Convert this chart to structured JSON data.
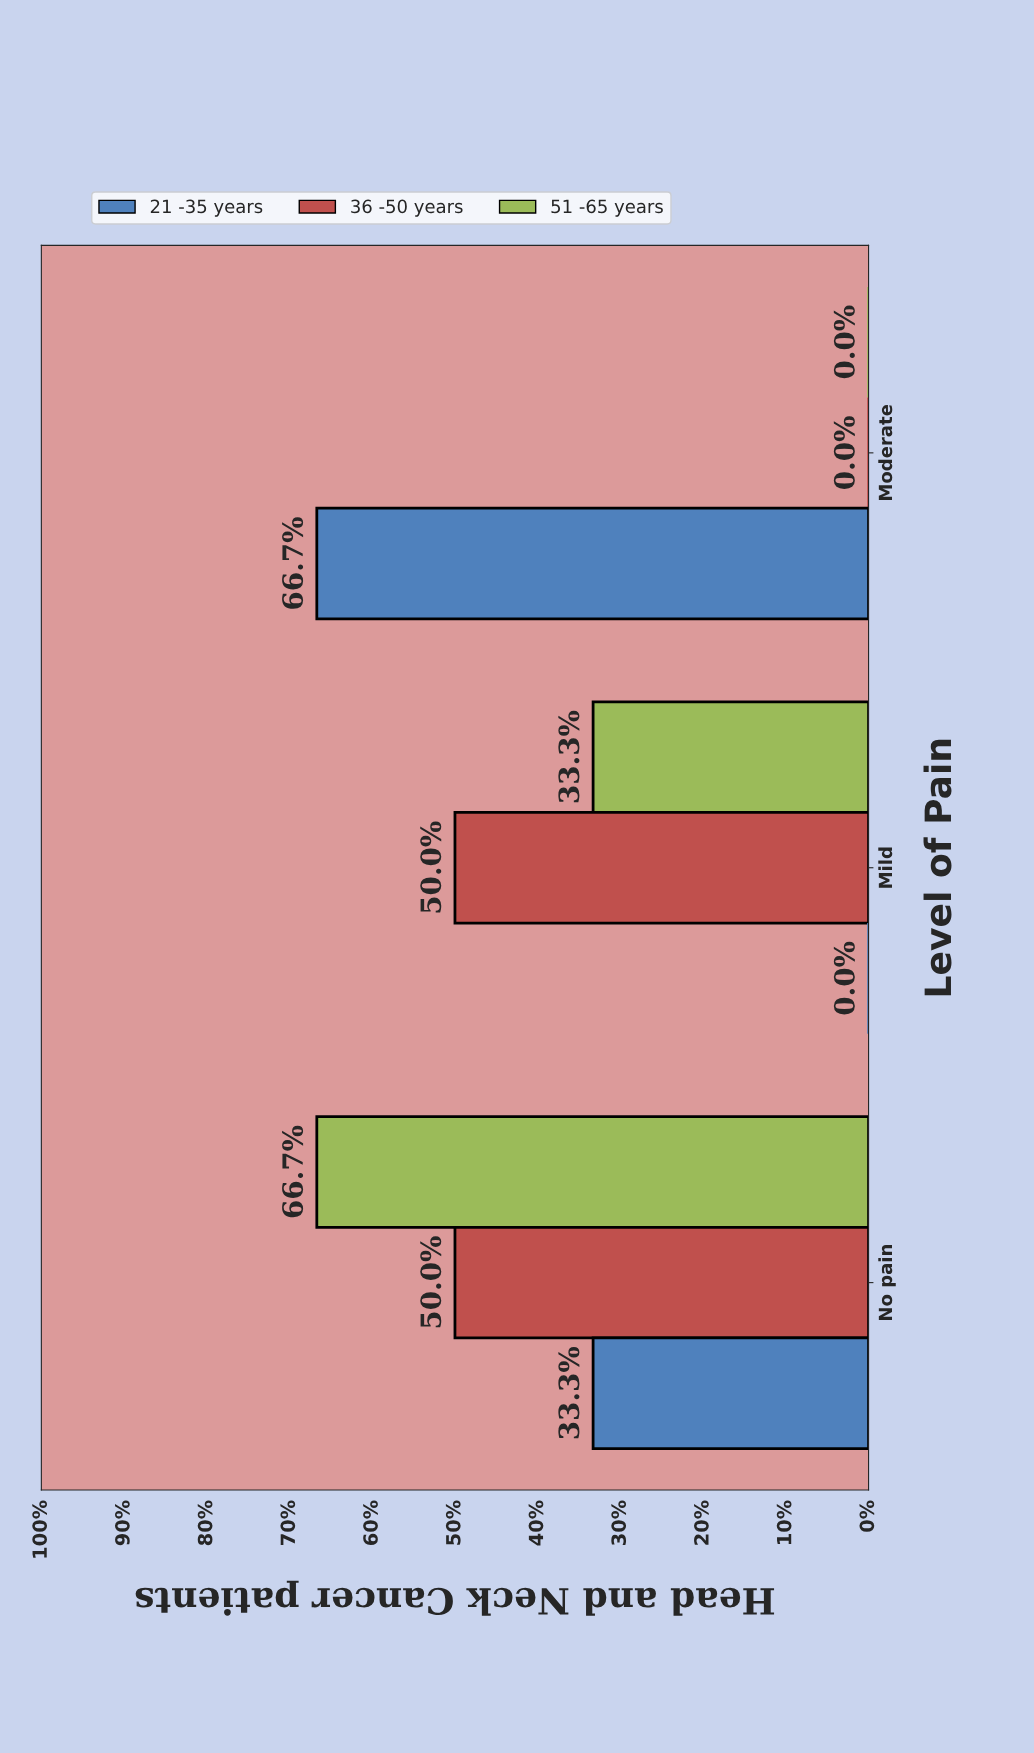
{
  "chart_data": {
    "type": "bar",
    "orientation": "horizontal",
    "xlabel": "Head and Neck Cancer patients",
    "ylabel": "Level of Pain",
    "categories": [
      "Moderate",
      "Mild",
      "No pain"
    ],
    "series": [
      {
        "name": "51 -65 years",
        "color": "#9bbb59",
        "values": [
          0,
          33.3,
          66.7
        ],
        "value_labels": [
          "0.0%",
          "33.3%",
          "66.7%"
        ]
      },
      {
        "name": "36 -50 years",
        "color": "#c0504d",
        "values": [
          0,
          50,
          50
        ],
        "value_labels": [
          "0.0%",
          "50.0%",
          "50.0%"
        ]
      },
      {
        "name": "21 -35 years",
        "color": "#4f81bd",
        "values": [
          66.7,
          0,
          33.3
        ],
        "value_labels": [
          "66.7%",
          "0.0%",
          "33.3%"
        ]
      }
    ],
    "xlim": [
      100,
      0
    ],
    "xticks": [
      {
        "value": 0,
        "label": "0%"
      },
      {
        "value": 10,
        "label": "10%"
      },
      {
        "value": 20,
        "label": "20%"
      },
      {
        "value": 30,
        "label": "30%"
      },
      {
        "value": 40,
        "label": "40%"
      },
      {
        "value": 50,
        "label": "50%"
      },
      {
        "value": 60,
        "label": "60%"
      },
      {
        "value": 70,
        "label": "70%"
      },
      {
        "value": 80,
        "label": "80%"
      },
      {
        "value": 90,
        "label": "90%"
      },
      {
        "value": 100,
        "label": "100%"
      }
    ],
    "legend": "top left",
    "grid": false
  }
}
